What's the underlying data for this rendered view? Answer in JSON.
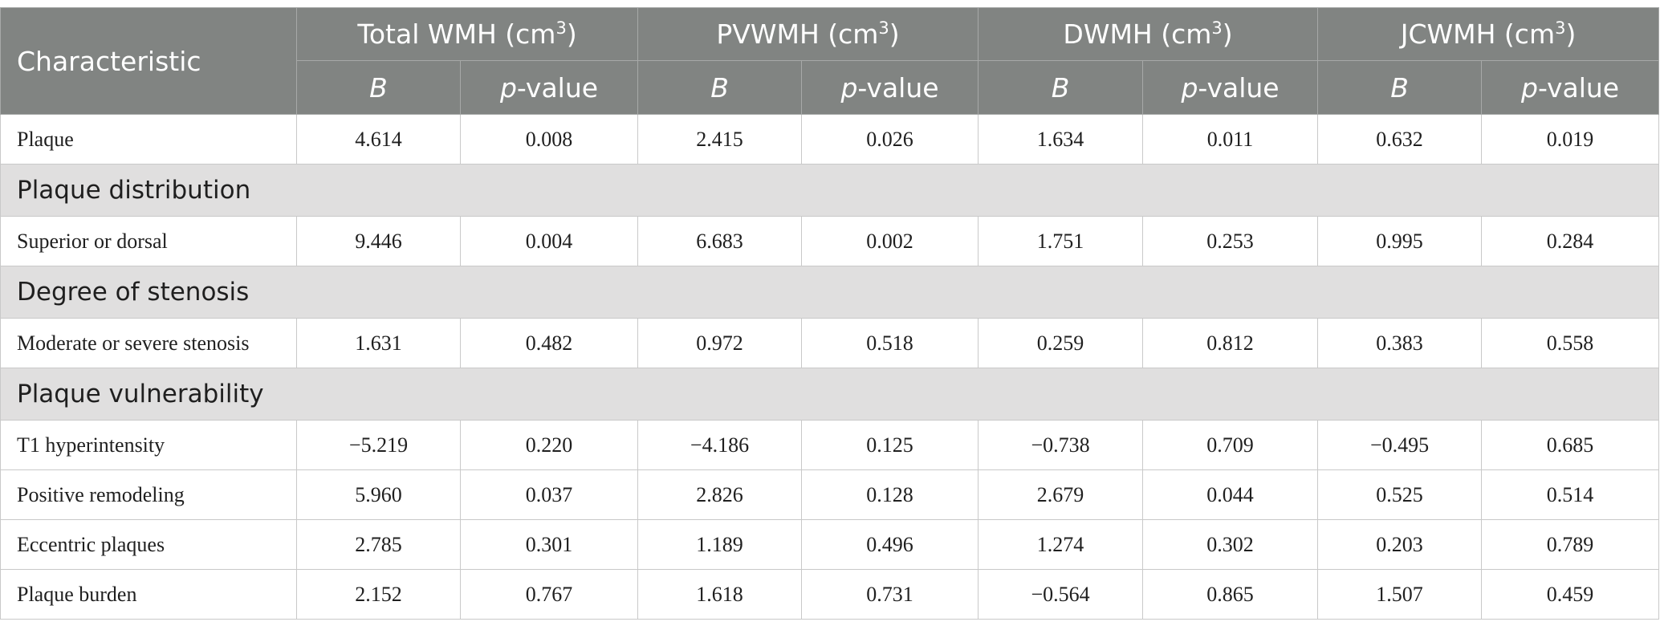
{
  "table": {
    "header": {
      "characteristic": "Characteristic",
      "groups": [
        {
          "name": "Total WMH (cm",
          "sup": "3",
          "close": ")"
        },
        {
          "name": "PVWMH (cm",
          "sup": "3",
          "close": ")"
        },
        {
          "name": "DWMH (cm",
          "sup": "3",
          "close": ")"
        },
        {
          "name": "JCWMH (cm",
          "sup": "3",
          "close": ")"
        }
      ],
      "sub": {
        "b": "B",
        "p_italic": "p",
        "p_rest": "-value"
      }
    },
    "rows": [
      {
        "label": "Plaque",
        "values": [
          "4.614",
          "0.008",
          "2.415",
          "0.026",
          "1.634",
          "0.011",
          "0.632",
          "0.019"
        ]
      },
      {
        "section": "Plaque distribution"
      },
      {
        "label": "Superior or dorsal",
        "values": [
          "9.446",
          "0.004",
          "6.683",
          "0.002",
          "1.751",
          "0.253",
          "0.995",
          "0.284"
        ]
      },
      {
        "section": "Degree of stenosis"
      },
      {
        "label": "Moderate or severe stenosis",
        "values": [
          "1.631",
          "0.482",
          "0.972",
          "0.518",
          "0.259",
          "0.812",
          "0.383",
          "0.558"
        ]
      },
      {
        "section": "Plaque vulnerability"
      },
      {
        "label": "T1 hyperintensity",
        "values": [
          "−5.219",
          "0.220",
          "−4.186",
          "0.125",
          "−0.738",
          "0.709",
          "−0.495",
          "0.685"
        ]
      },
      {
        "label": "Positive remodeling",
        "values": [
          "5.960",
          "0.037",
          "2.826",
          "0.128",
          "2.679",
          "0.044",
          "0.525",
          "0.514"
        ]
      },
      {
        "label": "Eccentric plaques",
        "values": [
          "2.785",
          "0.301",
          "1.189",
          "0.496",
          "1.274",
          "0.302",
          "0.203",
          "0.789"
        ]
      },
      {
        "label": "Plaque burden",
        "values": [
          "2.152",
          "0.767",
          "1.618",
          "0.731",
          "−0.564",
          "0.865",
          "1.507",
          "0.459"
        ]
      }
    ]
  },
  "colors": {
    "header_bg": "#818482",
    "section_bg": "#e0dfdf",
    "border": "#c9c9c9"
  }
}
